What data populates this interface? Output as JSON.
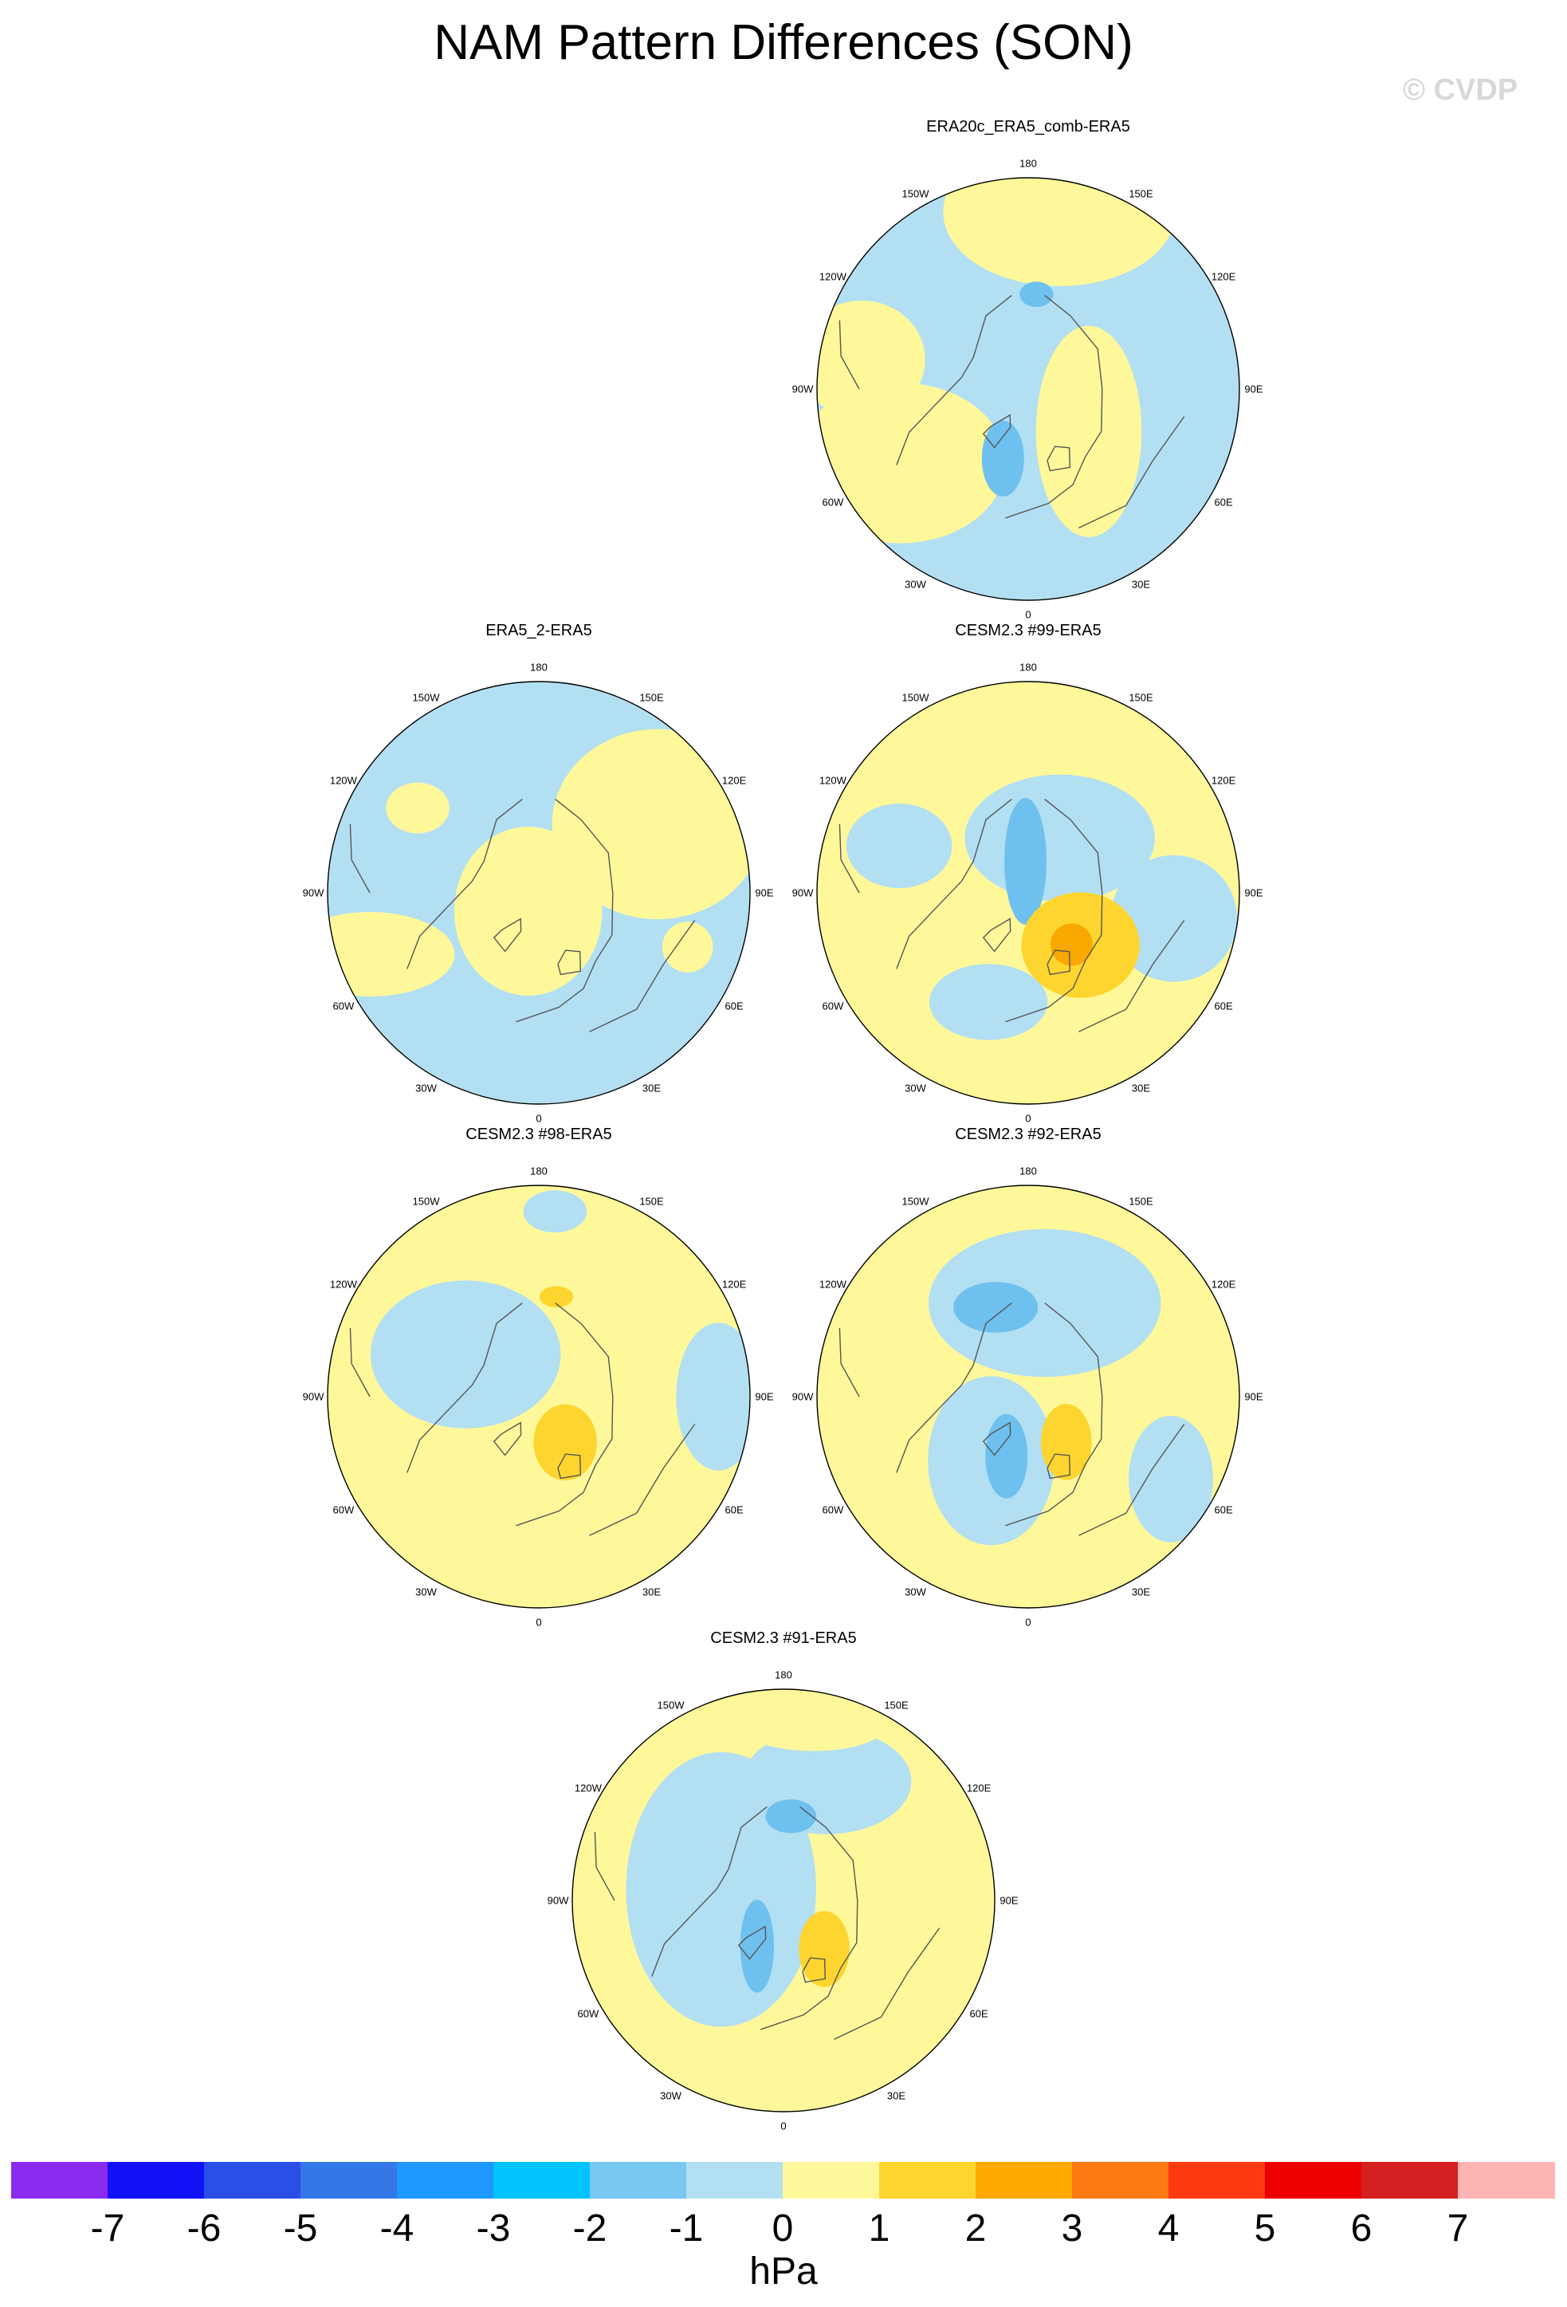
{
  "title": "NAM Pattern Differences (SON)",
  "watermark": "© CVDP",
  "units": "hPa",
  "colors": {
    "neg_light": "#b3dff3",
    "neg_mid": "#6ec1ef",
    "neg_strong": "#3498ea",
    "pos_light": "#fff89a",
    "pos_mid": "#fdd52e",
    "pos_strong": "#f9a800",
    "coast": "#555555"
  },
  "colorbar": {
    "segments": [
      "#8b2bf0",
      "#1212f6",
      "#2a4fe6",
      "#3478e8",
      "#1e98ff",
      "#00c3ff",
      "#78c8f2",
      "#b3dff3",
      "#fff89a",
      "#fdd52e",
      "#ffa800",
      "#ff7a10",
      "#ff3a10",
      "#ee0000",
      "#d42020",
      "#ffb4b4"
    ],
    "labels": [
      "-7",
      "-6",
      "-5",
      "-4",
      "-3",
      "-2",
      "-1",
      "0",
      "1",
      "2",
      "3",
      "4",
      "5",
      "6",
      "7"
    ]
  },
  "lon_labels": [
    "180",
    "150E",
    "120E",
    "90E",
    "60E",
    "30E",
    "0",
    "30W",
    "60W",
    "90W",
    "120W",
    "150W"
  ],
  "panels": [
    {
      "title": "ERA20c_ERA5_comb-ERA5",
      "base": "neg_light",
      "blobs": [
        {
          "level": "pos_light",
          "lon": 170,
          "r": 0.85,
          "w": 0.55,
          "h": 0.35
        },
        {
          "level": "pos_light",
          "lon": -60,
          "r": 0.7,
          "w": 0.5,
          "h": 0.38
        },
        {
          "level": "pos_light",
          "lon": -100,
          "r": 0.8,
          "w": 0.3,
          "h": 0.28
        },
        {
          "level": "pos_light",
          "lon": 55,
          "r": 0.35,
          "w": 0.25,
          "h": 0.5
        },
        {
          "level": "neg_mid",
          "lon": -20,
          "r": 0.35,
          "w": 0.1,
          "h": 0.18
        },
        {
          "level": "neg_mid",
          "lon": 175,
          "r": 0.45,
          "w": 0.08,
          "h": 0.06
        }
      ]
    },
    {
      "title": "ERA5_2-ERA5",
      "base": "neg_light",
      "blobs": [
        {
          "level": "pos_light",
          "lon": 120,
          "r": 0.65,
          "w": 0.5,
          "h": 0.45
        },
        {
          "level": "pos_light",
          "lon": -30,
          "r": 0.1,
          "w": 0.35,
          "h": 0.4
        },
        {
          "level": "pos_light",
          "lon": -70,
          "r": 0.85,
          "w": 0.4,
          "h": 0.2
        },
        {
          "level": "pos_light",
          "lon": 70,
          "r": 0.75,
          "w": 0.12,
          "h": 0.12
        },
        {
          "level": "pos_light",
          "lon": -125,
          "r": 0.7,
          "w": 0.15,
          "h": 0.12
        }
      ]
    },
    {
      "title": "CESM2.3 #99-ERA5",
      "base": "pos_light",
      "blobs": [
        {
          "level": "neg_light",
          "lon": 150,
          "r": 0.3,
          "w": 0.45,
          "h": 0.3
        },
        {
          "level": "neg_light",
          "lon": 80,
          "r": 0.7,
          "w": 0.3,
          "h": 0.3
        },
        {
          "level": "neg_light",
          "lon": -110,
          "r": 0.65,
          "w": 0.25,
          "h": 0.2
        },
        {
          "level": "neg_light",
          "lon": -20,
          "r": 0.55,
          "w": 0.28,
          "h": 0.18
        },
        {
          "level": "neg_mid",
          "lon": -175,
          "r": 0.15,
          "w": 0.1,
          "h": 0.3
        },
        {
          "level": "pos_mid",
          "lon": 45,
          "r": 0.35,
          "w": 0.28,
          "h": 0.25
        },
        {
          "level": "pos_strong",
          "lon": 40,
          "r": 0.32,
          "w": 0.1,
          "h": 0.1
        }
      ]
    },
    {
      "title": "CESM2.3 #98-ERA5",
      "base": "pos_light",
      "blobs": [
        {
          "level": "neg_light",
          "lon": -120,
          "r": 0.4,
          "w": 0.45,
          "h": 0.35
        },
        {
          "level": "neg_light",
          "lon": 90,
          "r": 0.85,
          "w": 0.2,
          "h": 0.35
        },
        {
          "level": "neg_light",
          "lon": 175,
          "r": 0.88,
          "w": 0.15,
          "h": 0.1
        },
        {
          "level": "pos_mid",
          "lon": 30,
          "r": 0.25,
          "w": 0.15,
          "h": 0.18
        },
        {
          "level": "pos_mid",
          "lon": 170,
          "r": 0.48,
          "w": 0.08,
          "h": 0.05
        }
      ]
    },
    {
      "title": "CESM2.3 #92-ERA5",
      "base": "pos_light",
      "blobs": [
        {
          "level": "neg_light",
          "lon": 170,
          "r": 0.45,
          "w": 0.55,
          "h": 0.35
        },
        {
          "level": "neg_light",
          "lon": -30,
          "r": 0.35,
          "w": 0.3,
          "h": 0.4
        },
        {
          "level": "neg_light",
          "lon": 60,
          "r": 0.78,
          "w": 0.2,
          "h": 0.3
        },
        {
          "level": "neg_mid",
          "lon": -160,
          "r": 0.45,
          "w": 0.2,
          "h": 0.12
        },
        {
          "level": "neg_mid",
          "lon": -20,
          "r": 0.3,
          "w": 0.1,
          "h": 0.2
        },
        {
          "level": "pos_mid",
          "lon": 40,
          "r": 0.28,
          "w": 0.12,
          "h": 0.18
        }
      ]
    },
    {
      "title": "CESM2.3 #91-ERA5",
      "base": "pos_light",
      "blobs": [
        {
          "level": "neg_light",
          "lon": -100,
          "r": 0.3,
          "w": 0.45,
          "h": 0.65
        },
        {
          "level": "neg_light",
          "lon": 160,
          "r": 0.6,
          "w": 0.4,
          "h": 0.25
        },
        {
          "level": "neg_mid",
          "lon": 175,
          "r": 0.4,
          "w": 0.12,
          "h": 0.08
        },
        {
          "level": "neg_mid",
          "lon": -30,
          "r": 0.25,
          "w": 0.08,
          "h": 0.22
        },
        {
          "level": "pos_light",
          "lon": 170,
          "r": 0.82,
          "w": 0.32,
          "h": 0.1
        },
        {
          "level": "pos_mid",
          "lon": 40,
          "r": 0.3,
          "w": 0.12,
          "h": 0.18
        }
      ]
    }
  ]
}
